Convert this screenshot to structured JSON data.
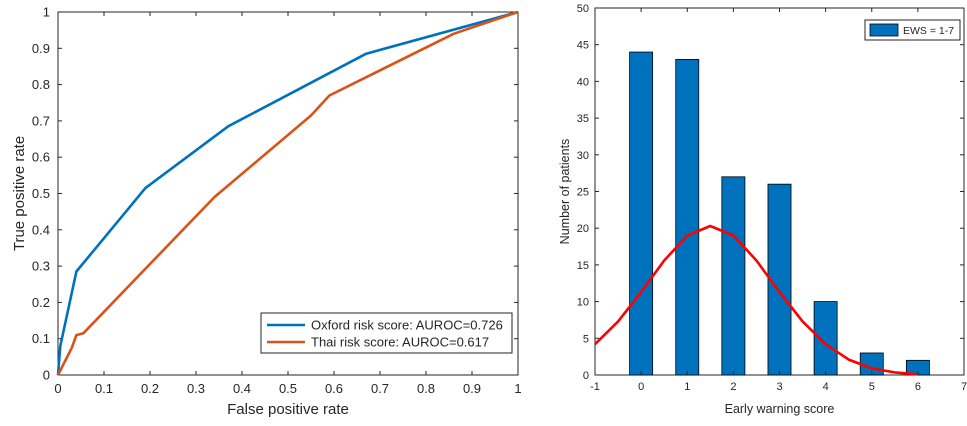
{
  "chart_data": [
    {
      "type": "line",
      "title": "",
      "xlabel": "False positive rate",
      "ylabel": "True positive rate",
      "xlim": [
        0,
        1
      ],
      "ylim": [
        0,
        1
      ],
      "xticks": [
        "0",
        "0.1",
        "0.2",
        "0.3",
        "0.4",
        "0.5",
        "0.6",
        "0.7",
        "0.8",
        "0.9",
        "1"
      ],
      "yticks": [
        "0",
        "0.1",
        "0.2",
        "0.3",
        "0.4",
        "0.5",
        "0.6",
        "0.7",
        "0.8",
        "0.9",
        "1"
      ],
      "grid": false,
      "legend_position": "bottom-right",
      "series": [
        {
          "name": "Oxford risk score: AUROC=0.726",
          "color": "#0072BD",
          "x": [
            0,
            0.005,
            0.04,
            0.19,
            0.37,
            0.67,
            1.0
          ],
          "y": [
            0,
            0.08,
            0.285,
            0.515,
            0.685,
            0.885,
            1.0
          ]
        },
        {
          "name": "Thai risk score: AUROC=0.617",
          "color": "#D95319",
          "x": [
            0,
            0.03,
            0.04,
            0.055,
            0.34,
            0.55,
            0.59,
            0.86,
            1.0
          ],
          "y": [
            0,
            0.075,
            0.11,
            0.115,
            0.49,
            0.715,
            0.77,
            0.94,
            1.0
          ]
        }
      ]
    },
    {
      "type": "bar",
      "title": "",
      "xlabel": "Early warning score",
      "ylabel": "Number of patients",
      "xlim": [
        -1,
        7
      ],
      "ylim": [
        0,
        50
      ],
      "xticks": [
        "-1",
        "0",
        "1",
        "2",
        "3",
        "4",
        "5",
        "6",
        "7"
      ],
      "yticks": [
        "0",
        "5",
        "10",
        "15",
        "20",
        "25",
        "30",
        "35",
        "40",
        "45",
        "50"
      ],
      "grid": false,
      "legend_position": "top-right",
      "series": [
        {
          "name": "EWS = 1-7",
          "color": "#0072BD",
          "categories": [
            0,
            1,
            2,
            3,
            4,
            5,
            6
          ],
          "values": [
            44,
            43,
            27,
            26,
            10,
            3,
            2
          ]
        }
      ],
      "fit_curve": {
        "color": "#FF0000",
        "x": [
          -1,
          -0.5,
          0,
          0.5,
          1,
          1.5,
          2,
          2.5,
          3,
          3.5,
          4,
          4.5,
          5,
          5.5,
          6
        ],
        "y": [
          4.2,
          7.3,
          11.3,
          15.6,
          19.0,
          20.3,
          19.0,
          15.6,
          11.3,
          7.3,
          4.2,
          2.1,
          0.9,
          0.35,
          0.1
        ]
      }
    }
  ]
}
